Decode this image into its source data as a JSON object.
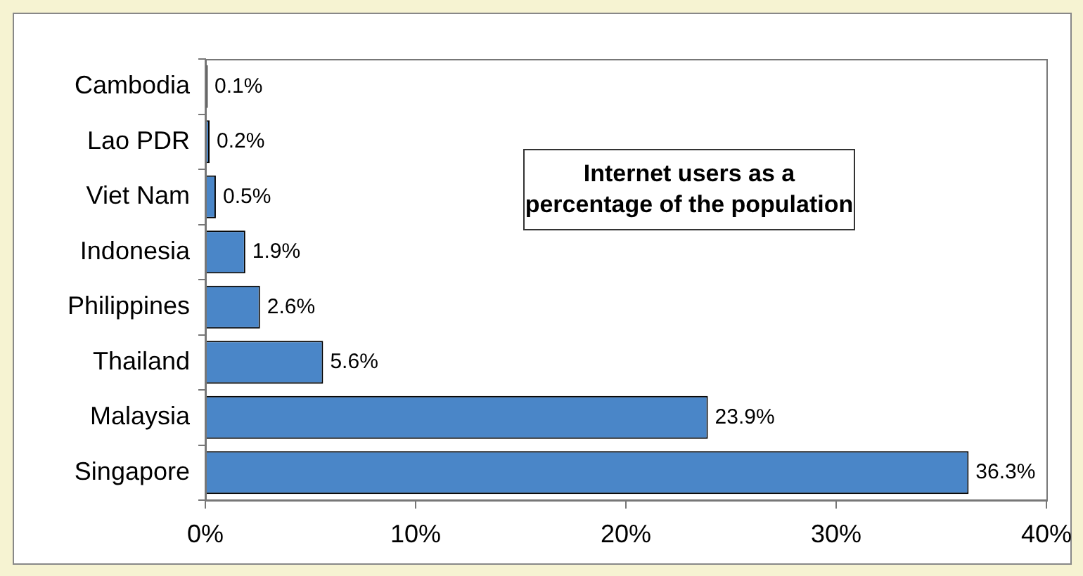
{
  "chart_data": {
    "type": "bar",
    "orientation": "horizontal",
    "title": "Internet users as a percentage of the population",
    "categories": [
      "Cambodia",
      "Lao PDR",
      "Viet Nam",
      "Indonesia",
      "Philippines",
      "Thailand",
      "Malaysia",
      "Singapore"
    ],
    "values": [
      0.1,
      0.2,
      0.5,
      1.9,
      2.6,
      5.6,
      23.9,
      36.3
    ],
    "value_labels": [
      "0.1%",
      "0.2%",
      "0.5%",
      "1.9%",
      "2.6%",
      "5.6%",
      "23.9%",
      "36.3%"
    ],
    "color": "#4a86c8",
    "xlim": [
      0,
      40
    ],
    "xticks": [
      {
        "value": 0,
        "label": "0%"
      },
      {
        "value": 10,
        "label": "10%"
      },
      {
        "value": 20,
        "label": "20%"
      },
      {
        "value": 30,
        "label": "30%"
      },
      {
        "value": 40,
        "label": "40%"
      }
    ],
    "grid": false,
    "legend": false
  }
}
